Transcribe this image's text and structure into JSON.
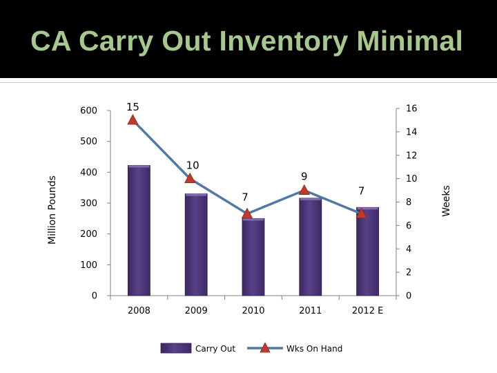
{
  "slide": {
    "title": "CA Carry Out Inventory Minimal"
  },
  "colors": {
    "title_bar": "#000000",
    "title_text": "#a6c78d",
    "bar_fill": "#4e3779",
    "line": "#4f79a3",
    "marker": "#c0392b"
  },
  "chart_data": {
    "type": "bar",
    "categories": [
      "2008",
      "2009",
      "2010",
      "2011",
      "2012 E"
    ],
    "series": [
      {
        "name": "Carry Out",
        "type": "bar",
        "axis": "left",
        "values": [
          422,
          330,
          250,
          316,
          286
        ]
      },
      {
        "name": "Wks On Hand",
        "type": "line",
        "axis": "right",
        "marker": "triangle",
        "values": [
          15,
          10,
          7,
          9,
          7
        ],
        "data_labels": [
          "15",
          "10",
          "7",
          "9",
          "7"
        ]
      }
    ],
    "ylabel_left": "Million Pounds",
    "ylabel_right": "Weeks",
    "ylim_left": [
      0,
      600
    ],
    "yticks_left": [
      "0",
      "100",
      "200",
      "300",
      "400",
      "500",
      "600"
    ],
    "ylim_right": [
      0,
      16
    ],
    "yticks_right": [
      "0",
      "2",
      "4",
      "6",
      "8",
      "10",
      "12",
      "14",
      "16"
    ],
    "grid": false,
    "legend": {
      "placement": "bottom",
      "entries": [
        "Carry Out",
        "Wks On Hand"
      ]
    }
  }
}
